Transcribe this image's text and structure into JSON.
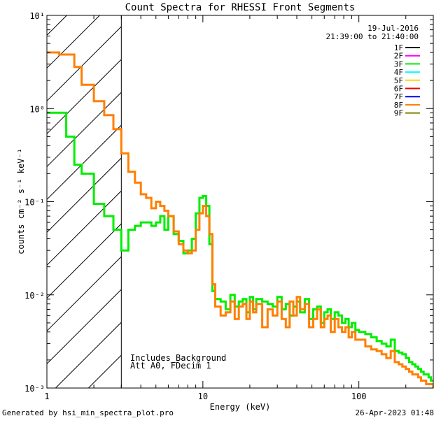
{
  "chart_data": {
    "type": "line",
    "title": "Count Spectra for RHESSI Front Segments",
    "xlabel": "Energy (keV)",
    "ylabel": "counts cm⁻² s⁻¹ keV⁻¹",
    "xscale": "log",
    "yscale": "log",
    "xlim": [
      1,
      300
    ],
    "ylim": [
      0.001,
      10
    ],
    "x_ticks": [
      1,
      10,
      100
    ],
    "x_tick_labels": [
      "1",
      "10",
      "100"
    ],
    "y_ticks": [
      0.001,
      0.01,
      0.1,
      1,
      10
    ],
    "y_tick_labels": [
      "10⁻³",
      "10⁻²",
      "10⁻¹",
      "10⁰",
      "10¹"
    ],
    "date": "19-Jul-2016",
    "time_range": "21:39:00 to 21:40:00",
    "excluded_region": {
      "x_range": [
        1,
        3
      ],
      "style": "hatched"
    },
    "legend": [
      {
        "name": "1F",
        "color": "#000000"
      },
      {
        "name": "2F",
        "color": "#ff00ff"
      },
      {
        "name": "3F",
        "color": "#00ee00"
      },
      {
        "name": "4F",
        "color": "#00ffff"
      },
      {
        "name": "5F",
        "color": "#ffd700"
      },
      {
        "name": "6F",
        "color": "#ee0000"
      },
      {
        "name": "7F",
        "color": "#0000ee"
      },
      {
        "name": "8F",
        "color": "#ff7f00"
      },
      {
        "name": "9F",
        "color": "#808000"
      }
    ],
    "annotations": [
      "Includes_Background",
      "Att A0, FDecim 1"
    ],
    "series": [
      {
        "name": "3F",
        "color": "#00ee00",
        "x": [
          1.0,
          1.2,
          1.33,
          1.5,
          1.67,
          2.0,
          2.33,
          2.67,
          3.0,
          3.33,
          3.67,
          4.0,
          4.33,
          4.67,
          5.0,
          5.33,
          5.67,
          6.0,
          6.5,
          7.0,
          7.5,
          8.0,
          8.5,
          9.0,
          9.5,
          10.0,
          10.5,
          11.0,
          11.5,
          12.0,
          13,
          14,
          15,
          16,
          17,
          18,
          19,
          20,
          21,
          22,
          24,
          26,
          28,
          30,
          32,
          34,
          36,
          38,
          40,
          42,
          45,
          48,
          51,
          54,
          57,
          60,
          63,
          66,
          70,
          74,
          78,
          82,
          86,
          90,
          95,
          100,
          110,
          120,
          130,
          140,
          150,
          160,
          170,
          180,
          190,
          200,
          210,
          220,
          230,
          240,
          250,
          260,
          270,
          280,
          290,
          300
        ],
        "y": [
          0.9,
          0.9,
          0.5,
          0.25,
          0.2,
          0.095,
          0.07,
          0.05,
          0.03,
          0.05,
          0.055,
          0.06,
          0.06,
          0.055,
          0.06,
          0.07,
          0.05,
          0.07,
          0.045,
          0.038,
          0.028,
          0.03,
          0.04,
          0.075,
          0.11,
          0.115,
          0.09,
          0.035,
          0.011,
          0.009,
          0.0085,
          0.007,
          0.01,
          0.0075,
          0.0085,
          0.009,
          0.0065,
          0.0095,
          0.007,
          0.009,
          0.0085,
          0.008,
          0.0075,
          0.0095,
          0.007,
          0.008,
          0.006,
          0.0075,
          0.0085,
          0.0065,
          0.009,
          0.0055,
          0.007,
          0.0075,
          0.005,
          0.0065,
          0.007,
          0.0055,
          0.0065,
          0.006,
          0.005,
          0.0055,
          0.0045,
          0.005,
          0.0042,
          0.004,
          0.0038,
          0.0035,
          0.0032,
          0.003,
          0.0028,
          0.0033,
          0.0025,
          0.0024,
          0.0023,
          0.0021,
          0.0019,
          0.0018,
          0.0017,
          0.0016,
          0.0015,
          0.0014,
          0.0014,
          0.0013,
          0.0012,
          0.0012
        ]
      },
      {
        "name": "8F",
        "color": "#ff7f00",
        "x": [
          1.0,
          1.2,
          1.33,
          1.5,
          1.67,
          2.0,
          2.33,
          2.67,
          3.0,
          3.33,
          3.67,
          4.0,
          4.33,
          4.67,
          5.0,
          5.33,
          5.67,
          6.0,
          6.5,
          7.0,
          7.5,
          8.0,
          8.5,
          9.0,
          9.5,
          10.0,
          10.5,
          11.0,
          11.5,
          12.0,
          13,
          14,
          15,
          16,
          17,
          18,
          19,
          20,
          21,
          22,
          24,
          26,
          28,
          30,
          32,
          34,
          36,
          38,
          40,
          42,
          45,
          48,
          51,
          54,
          57,
          60,
          63,
          66,
          70,
          74,
          78,
          82,
          86,
          90,
          95,
          100,
          110,
          120,
          130,
          140,
          150,
          160,
          170,
          180,
          190,
          200,
          210,
          220,
          230,
          240,
          250,
          260,
          270,
          280,
          290,
          300
        ],
        "y": [
          4.0,
          3.8,
          3.8,
          2.8,
          1.8,
          1.2,
          0.85,
          0.6,
          0.33,
          0.21,
          0.16,
          0.12,
          0.11,
          0.085,
          0.1,
          0.09,
          0.08,
          0.07,
          0.048,
          0.035,
          0.03,
          0.028,
          0.03,
          0.05,
          0.075,
          0.09,
          0.07,
          0.045,
          0.013,
          0.0075,
          0.006,
          0.0065,
          0.0085,
          0.0055,
          0.0075,
          0.008,
          0.0055,
          0.0085,
          0.0065,
          0.008,
          0.0045,
          0.007,
          0.006,
          0.0085,
          0.0055,
          0.0045,
          0.0085,
          0.006,
          0.0095,
          0.007,
          0.008,
          0.0045,
          0.0055,
          0.007,
          0.0045,
          0.0055,
          0.006,
          0.004,
          0.0055,
          0.0045,
          0.004,
          0.0045,
          0.0035,
          0.004,
          0.0033,
          0.0033,
          0.0028,
          0.0026,
          0.0025,
          0.0023,
          0.0021,
          0.0025,
          0.0019,
          0.0018,
          0.0017,
          0.0016,
          0.0015,
          0.0014,
          0.0014,
          0.0013,
          0.0012,
          0.0012,
          0.0011,
          0.0011,
          0.0011,
          0.001
        ]
      }
    ]
  },
  "footer": {
    "generated_by": "Generated by hsi_min_spectra_plot.pro",
    "timestamp": "26-Apr-2023 01:48"
  }
}
